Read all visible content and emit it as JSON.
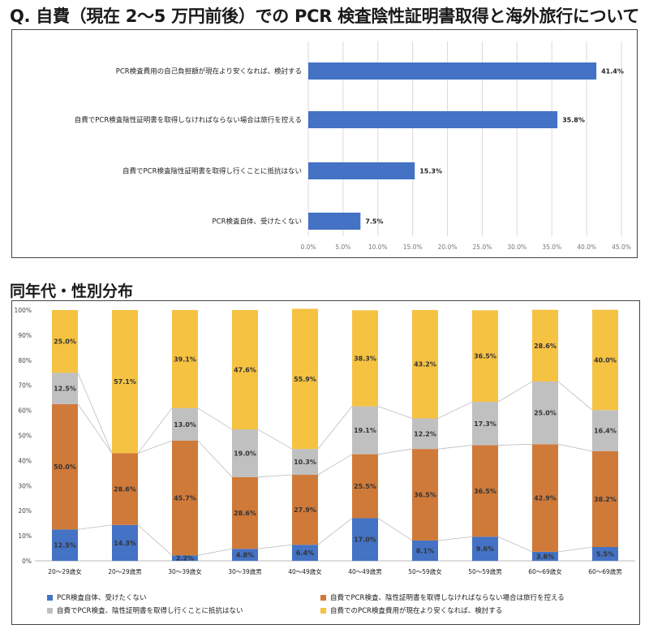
{
  "title": "Q. 自費（現在 2～5 万円前後）での PCR 検査陰性証明書取得と海外旅行について",
  "section2_title": "同年代・性別分布",
  "colors": {
    "blue": "#4472c4",
    "orange": "#d07a3a",
    "gray": "#c0c0c0",
    "yellow": "#f5c242",
    "grid": "#d9d9d9"
  },
  "chart_data": [
    {
      "type": "bar",
      "orientation": "horizontal",
      "categories": [
        "PCR検査費用の自己負担額が現在より安くなれば、検討する",
        "自費でPCR検査陰性証明書を取得しなければならない場合は旅行を控える",
        "自費でPCR検査陰性証明書を取得し行くことに抵抗はない",
        "PCR検査自体、受けたくない"
      ],
      "values": [
        41.4,
        35.8,
        15.3,
        7.5
      ],
      "value_labels": [
        "41.4%",
        "35.8%",
        "15.3%",
        "7.5%"
      ],
      "xlim": [
        0,
        45
      ],
      "ticks": [
        "0.0%",
        "5.0%",
        "10.0%",
        "15.0%",
        "20.0%",
        "25.0%",
        "30.0%",
        "35.0%",
        "40.0%",
        "45.0%"
      ],
      "grid": true
    },
    {
      "type": "bar",
      "stacked": true,
      "categories": [
        "20～29歳女",
        "20～29歳男",
        "30～39歳女",
        "30～39歳男",
        "40～49歳女",
        "40～49歳男",
        "50～59歳女",
        "50～59歳男",
        "60～69歳女",
        "60～69歳男"
      ],
      "ylim": [
        0,
        100
      ],
      "yticks": [
        "0%",
        "10%",
        "20%",
        "30%",
        "40%",
        "50%",
        "60%",
        "70%",
        "80%",
        "90%",
        "100%"
      ],
      "series": [
        {
          "name": "PCR検査自体、受けたくない",
          "values": [
            12.5,
            14.3,
            2.2,
            4.8,
            6.4,
            17.0,
            8.1,
            9.6,
            3.6,
            5.5
          ],
          "labels": [
            "12.5%",
            "14.3%",
            "2.2%",
            "4.8%",
            "6.4%",
            "17.0%",
            "8.1%",
            "9.6%",
            "3.6%",
            "5.5%"
          ]
        },
        {
          "name": "自費でPCR検査、陰性証明書を取得しなければならない場合は旅行を控える",
          "values": [
            50.0,
            28.6,
            45.7,
            28.6,
            27.9,
            25.5,
            36.5,
            36.5,
            42.9,
            38.2
          ],
          "labels": [
            "50.0%",
            "28.6%",
            "45.7%",
            "28.6%",
            "27.9%",
            "25.5%",
            "36.5%",
            "36.5%",
            "42.9%",
            "38.2%"
          ]
        },
        {
          "name": "自費でPCR検査、陰性証明書を取得し行くことに抵抗はない",
          "values": [
            12.5,
            0.0,
            13.0,
            19.0,
            10.3,
            19.1,
            12.2,
            17.3,
            25.0,
            16.4
          ],
          "labels": [
            "12.5%",
            "",
            "13.0%",
            "19.0%",
            "10.3%",
            "19.1%",
            "12.2%",
            "17.3%",
            "25.0%",
            "16.4%"
          ]
        },
        {
          "name": "自費でのPCR検査費用が現在より安くなれば、検討する",
          "values": [
            25.0,
            57.1,
            39.1,
            47.6,
            55.9,
            38.3,
            43.2,
            36.5,
            28.6,
            40.0
          ],
          "labels": [
            "25.0%",
            "57.1%",
            "39.1%",
            "47.6%",
            "55.9%",
            "38.3%",
            "43.2%",
            "36.5%",
            "28.6%",
            "40.0%"
          ]
        }
      ]
    }
  ]
}
